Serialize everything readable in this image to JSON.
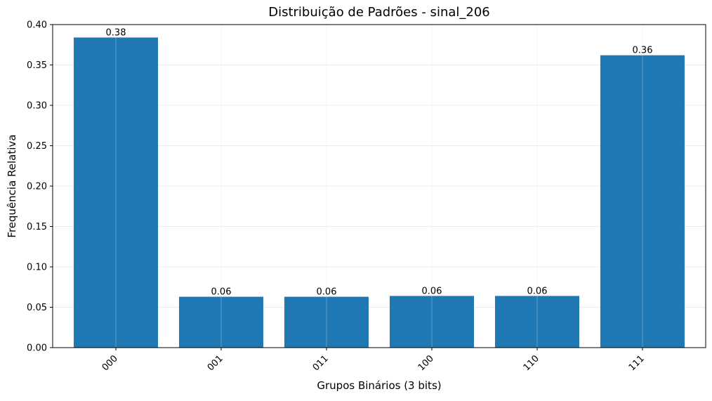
{
  "chart_data": {
    "type": "bar",
    "title": "Distribuição de Padrões - sinal_206",
    "xlabel": "Grupos Binários (3 bits)",
    "ylabel": "Frequência Relativa",
    "categories": [
      "000",
      "001",
      "011",
      "100",
      "110",
      "111"
    ],
    "values": [
      0.384,
      0.063,
      0.063,
      0.064,
      0.064,
      0.362
    ],
    "data_labels": [
      "0.38",
      "0.06",
      "0.06",
      "0.06",
      "0.06",
      "0.36"
    ],
    "ylim": [
      0,
      0.4
    ],
    "yticks": [
      0.0,
      0.05,
      0.1,
      0.15,
      0.2,
      0.25,
      0.3,
      0.35,
      0.4
    ],
    "ytick_labels": [
      "0.00",
      "0.05",
      "0.10",
      "0.15",
      "0.20",
      "0.25",
      "0.30",
      "0.35",
      "0.40"
    ],
    "grid": true,
    "bar_color": "#1f77b4",
    "grid_color": "#e6e6e6",
    "xtick_rotation_deg": 45
  }
}
